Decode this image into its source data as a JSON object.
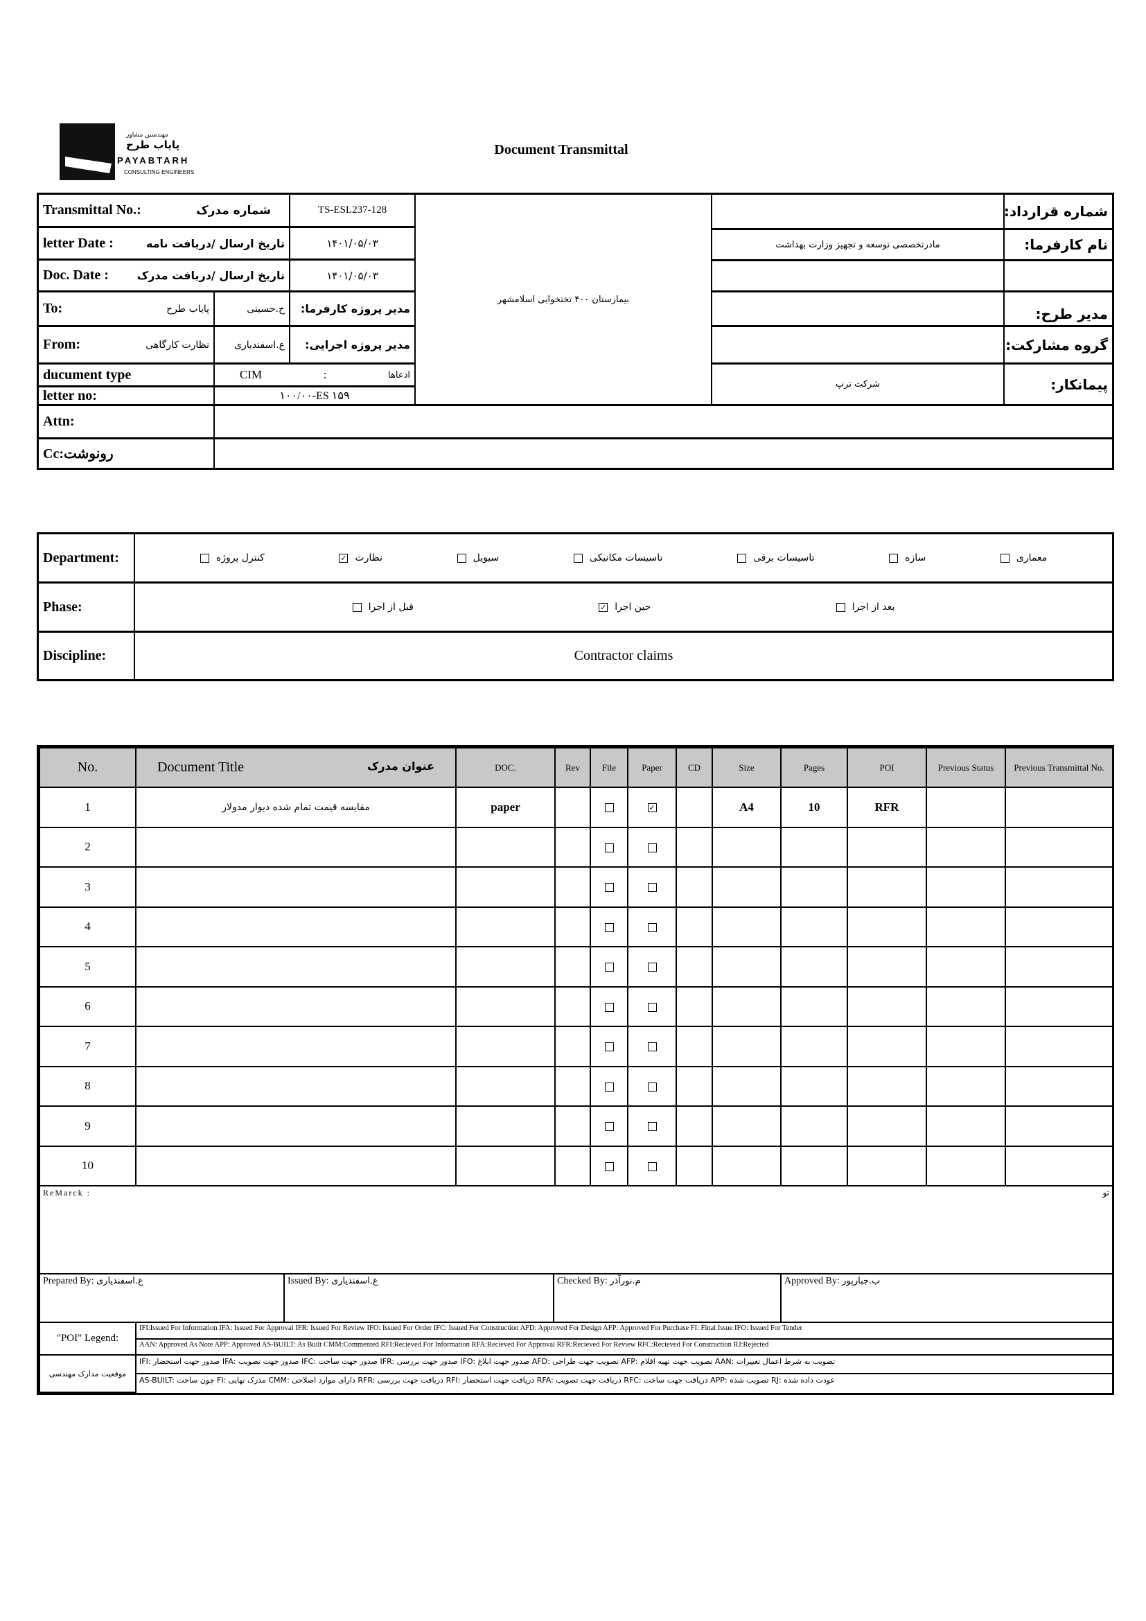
{
  "logo": {
    "fa_small": "مهندسین مشاور",
    "fa_name": "پایاب طرح",
    "en_name": "PAYABTARH",
    "en_sub": "CONSULTING ENGINEERS"
  },
  "title": "Document Transmittal",
  "info": {
    "transmittal_no_label": "Transmittal No.:",
    "transmittal_no_fa": "شماره مدرک",
    "transmittal_no": "TS-ESL237-128",
    "letter_date_label": "letter Date  :",
    "letter_date_fa": "تاریخ ارسال /دریافت نامه",
    "letter_date": "۱۴۰۱/۰۵/۰۳",
    "doc_date_label": "Doc. Date   :",
    "doc_date_fa": "تاریخ ارسال /دریافت مدرک",
    "doc_date": "۱۴۰۱/۰۵/۰۳",
    "to_label": "To:",
    "to_value": "پایاب طرح",
    "client_pm_name": "ح.حسینی",
    "client_pm_label": "مدیر پروژه کارفرما:",
    "from_label": "From:",
    "from_value": "نظارت کارگاهی",
    "exec_pm_name": "ع.اسفندیاری",
    "exec_pm_label": "مدیر پروژه اجرایی:",
    "doc_type_label": "ducument type",
    "doc_type_code": "CIM",
    "doc_type_sep": ":",
    "doc_type_fa": "ادعاها",
    "letter_no_label": "letter no:",
    "letter_no": "۱۰۰/۰۰-ES ۱۵۹",
    "project": "بیمارستان ۴۰۰ تختخوابی اسلامشهر",
    "contract_no_label": "شماره قرارداد:",
    "contract_no": "",
    "client_label": "نام کارفرما:",
    "client": "مادرتخصصی توسعه و تجهیز وزارت بهداشت",
    "design_manager_label": "مدیر طرح:",
    "design_manager": "",
    "partnership_label": "گروه مشارکت:",
    "partnership": "",
    "contractor_label": "پیمانکار:",
    "contractor": "شرکت ترپ",
    "attn_label": "Attn:",
    "attn": "",
    "cc_label": "Cc:رونوشت",
    "cc": ""
  },
  "classification": {
    "department_label": "Department:",
    "departments": [
      {
        "label": "معماری",
        "checked": false
      },
      {
        "label": "سازه",
        "checked": false
      },
      {
        "label": "تاسیسات برقی",
        "checked": false
      },
      {
        "label": "تاسیسات مکانیکی",
        "checked": false
      },
      {
        "label": "سیویل",
        "checked": false
      },
      {
        "label": "نظارت",
        "checked": true
      },
      {
        "label": "کنترل پروژه",
        "checked": false
      }
    ],
    "phase_label": "Phase:",
    "phases": [
      {
        "label": "بعد از اجرا",
        "checked": false
      },
      {
        "label": "حین اجرا",
        "checked": true
      },
      {
        "label": "قبل از اجرا",
        "checked": false
      }
    ],
    "discipline_label": "Discipline:",
    "discipline": "Contractor claims"
  },
  "documents": {
    "headers": {
      "no": "No.",
      "title_en": "Document Title",
      "title_fa": "عنوان مدرک",
      "doc": "DOC.",
      "rev": "Rev",
      "file": "File",
      "paper": "Paper",
      "cd": "CD",
      "size": "Size",
      "pages": "Pages",
      "poi": "POI",
      "prev_status": "Previous Status",
      "prev_transmittal": "Previous Transmittal No."
    },
    "rows": [
      {
        "no": "1",
        "title": "مقایسه قیمت تمام شده دیوار مدولار",
        "doc": "paper",
        "rev": "",
        "file": false,
        "paper": true,
        "cd": "",
        "size": "A4",
        "pages": "10",
        "poi": "RFR",
        "prev_status": "",
        "prev_transmittal": ""
      },
      {
        "no": "2",
        "title": "",
        "doc": "",
        "rev": "",
        "file": false,
        "paper": false,
        "cd": "",
        "size": "",
        "pages": "",
        "poi": "",
        "prev_status": "",
        "prev_transmittal": ""
      },
      {
        "no": "3",
        "title": "",
        "doc": "",
        "rev": "",
        "file": false,
        "paper": false,
        "cd": "",
        "size": "",
        "pages": "",
        "poi": "",
        "prev_status": "",
        "prev_transmittal": ""
      },
      {
        "no": "4",
        "title": "",
        "doc": "",
        "rev": "",
        "file": false,
        "paper": false,
        "cd": "",
        "size": "",
        "pages": "",
        "poi": "",
        "prev_status": "",
        "prev_transmittal": ""
      },
      {
        "no": "5",
        "title": "",
        "doc": "",
        "rev": "",
        "file": false,
        "paper": false,
        "cd": "",
        "size": "",
        "pages": "",
        "poi": "",
        "prev_status": "",
        "prev_transmittal": ""
      },
      {
        "no": "6",
        "title": "",
        "doc": "",
        "rev": "",
        "file": false,
        "paper": false,
        "cd": "",
        "size": "",
        "pages": "",
        "poi": "",
        "prev_status": "",
        "prev_transmittal": ""
      },
      {
        "no": "7",
        "title": "",
        "doc": "",
        "rev": "",
        "file": false,
        "paper": false,
        "cd": "",
        "size": "",
        "pages": "",
        "poi": "",
        "prev_status": "",
        "prev_transmittal": ""
      },
      {
        "no": "8",
        "title": "",
        "doc": "",
        "rev": "",
        "file": false,
        "paper": false,
        "cd": "",
        "size": "",
        "pages": "",
        "poi": "",
        "prev_status": "",
        "prev_transmittal": ""
      },
      {
        "no": "9",
        "title": "",
        "doc": "",
        "rev": "",
        "file": false,
        "paper": false,
        "cd": "",
        "size": "",
        "pages": "",
        "poi": "",
        "prev_status": "",
        "prev_transmittal": ""
      },
      {
        "no": "10",
        "title": "",
        "doc": "",
        "rev": "",
        "file": false,
        "paper": false,
        "cd": "",
        "size": "",
        "pages": "",
        "poi": "",
        "prev_status": "",
        "prev_transmittal": ""
      }
    ]
  },
  "footer": {
    "remark_label": "ReMarck :",
    "remark_fa": "تو",
    "prepared_label": "Prepared By:",
    "prepared": "ع.اسفندیاری",
    "issued_label": "Issued By:",
    "issued": "ع.اسفندیاری",
    "checked_label": "Checked By:",
    "checked": "م.نورآذر",
    "approved_label": "Approved By:",
    "approved": "ب.جبارپور",
    "poi_legend_label": "\"POI\" Legend:",
    "poi_line1": "IFI:Issued For Information  IFA: Issued For Approval  IFR: Issued For Review   IFO: Issued For Order  IFC: Issued For Construction AFD: Approved For Design AFP: Approved For Purchase  FI: Final Issue  IFO: Issued For Tender",
    "poi_line2": "AAN: Approved As Note   APP: Approved  AS-BUILT: As Built CMM:Commented  RFI:Recieved For Information   RFA:Recieved For Approval   RFR:Recieved For Review  RFC:Recieved For Construction  RJ:Rejected",
    "status_label": "موقعیت مدارک مهندسی",
    "status_line1": "IFI: صدور جهت استحضار   IFA: صدور جهت تصویب   IFC: صدور جهت ساخت   IFR: صدور جهت بررسی   IFO: صدور جهت ابلاغ   AFD: تصویب جهت طراحی   AFP: تصویب جهت تهیه اقلام   AAN: تصویب به شرط اعمال تغییرات",
    "status_line2": "AS-BUILT: چون ساخت   FI: مدرک نهایی   CMM: دارای موارد اصلاحی   RFR: دریافت جهت بررسی   RFI: دریافت جهت استحضار   RFA: دریافت جهت تصویب   RFC: دریافت جهت ساخت   APP: تصویب شده   RJ: عودت داده شده"
  }
}
